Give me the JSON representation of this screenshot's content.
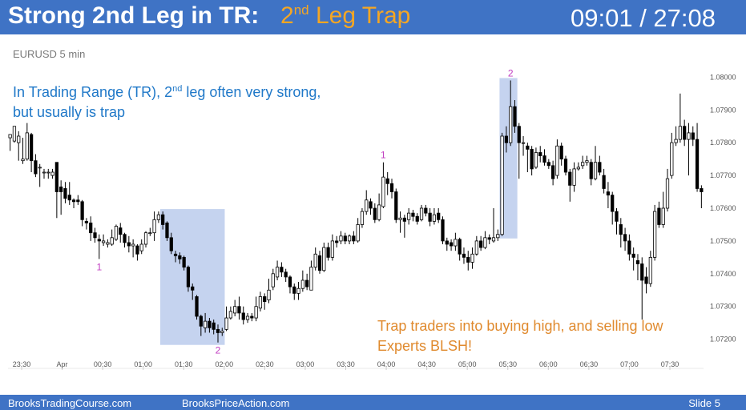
{
  "header": {
    "title": "Strong 2nd Leg in TR:",
    "title_accent_prefix": "2",
    "title_accent_sup": "nd",
    "title_accent_suffix": " Leg Trap",
    "timer": "09:01 / 27:08"
  },
  "symbol_label": "EURUSD 5 min",
  "annotation_left": {
    "line1_prefix": "In Trading Range (TR), 2",
    "line1_sup": "nd",
    "line1_suffix": " leg often very strong,",
    "line2": "but usually is trap"
  },
  "annotation_right": {
    "line1": "Trap traders into buying high, and selling low",
    "line2": "Experts BLSH!"
  },
  "footer": {
    "left": "BrooksTradingCourse.com",
    "center": "BrooksPriceAction.com",
    "right": "Slide  5"
  },
  "colors": {
    "header_bg": "#3f73c5",
    "accent": "#f5a623",
    "annotation_left": "#1f78c8",
    "annotation_right": "#e08a2e",
    "leg_labels": "#c13fc1",
    "highlight": "#c5d3ef",
    "bull_body": "#ffffff",
    "bear_body": "#000000"
  },
  "chart_data": {
    "type": "candlestick",
    "ylim": [
      1.0716,
      1.0804
    ],
    "y_ticks": [
      "1.08000",
      "1.07900",
      "1.07800",
      "1.07700",
      "1.07600",
      "1.07500",
      "1.07400",
      "1.07300",
      "1.07200"
    ],
    "x_ticks": [
      "23:30",
      "Apr",
      "00:30",
      "01:00",
      "01:30",
      "02:00",
      "02:30",
      "03:00",
      "03:30",
      "04:00",
      "04:30",
      "05:00",
      "05:30",
      "06:00",
      "06:30",
      "07:00",
      "07:30"
    ],
    "leg_labels": [
      {
        "text": "1",
        "bar": 21,
        "position": "below"
      },
      {
        "text": "2",
        "bar": 49,
        "position": "below"
      },
      {
        "text": "1",
        "bar": 88,
        "position": "above"
      },
      {
        "text": "2",
        "bar": 118,
        "position": "above"
      }
    ],
    "highlight_ranges": [
      [
        36,
        50
      ],
      [
        116,
        119
      ]
    ],
    "bars": [
      [
        1.07815,
        1.07825,
        1.07825,
        1.07775
      ],
      [
        1.07805,
        1.0785,
        1.0785,
        1.078
      ],
      [
        1.078,
        1.0782,
        1.07835,
        1.07745
      ],
      [
        1.07745,
        1.0775,
        1.07815,
        1.07735
      ],
      [
        1.0775,
        1.0783,
        1.0786,
        1.07745
      ],
      [
        1.07825,
        1.07745,
        1.0783,
        1.0771
      ],
      [
        1.07745,
        1.07705,
        1.07765,
        1.07695
      ],
      [
        1.07725,
        1.07725,
        1.07735,
        1.07665
      ],
      [
        1.0771,
        1.0771,
        1.0772,
        1.0769
      ],
      [
        1.0771,
        1.0771,
        1.0772,
        1.0769
      ],
      [
        1.077,
        1.0771,
        1.0772,
        1.0769
      ],
      [
        1.0774,
        1.0765,
        1.0774,
        1.0757
      ],
      [
        1.07665,
        1.0765,
        1.07685,
        1.0758
      ],
      [
        1.0766,
        1.0763,
        1.0768,
        1.07615
      ],
      [
        1.0764,
        1.07625,
        1.0768,
        1.0761
      ],
      [
        1.07625,
        1.0762,
        1.0763,
        1.076
      ],
      [
        1.07625,
        1.0762,
        1.0764,
        1.0761
      ],
      [
        1.0762,
        1.07565,
        1.07625,
        1.07545
      ],
      [
        1.0756,
        1.07555,
        1.0757,
        1.07535
      ],
      [
        1.07555,
        1.07525,
        1.07575,
        1.075
      ],
      [
        1.07525,
        1.0751,
        1.0754,
        1.07495
      ],
      [
        1.07505,
        1.075,
        1.0752,
        1.07445
      ],
      [
        1.07495,
        1.075,
        1.0752,
        1.07485
      ],
      [
        1.0749,
        1.07495,
        1.07505,
        1.0748
      ],
      [
        1.0749,
        1.0751,
        1.07535,
        1.07485
      ],
      [
        1.07505,
        1.07545,
        1.0755,
        1.075
      ],
      [
        1.0754,
        1.0752,
        1.07555,
        1.07495
      ],
      [
        1.0752,
        1.07495,
        1.07525,
        1.0748
      ],
      [
        1.07495,
        1.07485,
        1.07515,
        1.07465
      ],
      [
        1.07485,
        1.0749,
        1.07505,
        1.0745
      ],
      [
        1.07485,
        1.0746,
        1.0749,
        1.0744
      ],
      [
        1.0747,
        1.0749,
        1.07505,
        1.0746
      ],
      [
        1.0749,
        1.07525,
        1.0753,
        1.0748
      ],
      [
        1.07525,
        1.07525,
        1.0754,
        1.07515
      ],
      [
        1.07525,
        1.07565,
        1.0759,
        1.075
      ],
      [
        1.07565,
        1.0758,
        1.0759,
        1.07555
      ],
      [
        1.0758,
        1.0755,
        1.0759,
        1.07535
      ],
      [
        1.07555,
        1.0751,
        1.0756,
        1.075
      ],
      [
        1.0751,
        1.0747,
        1.07525,
        1.0746
      ],
      [
        1.0746,
        1.07455,
        1.0747,
        1.07435
      ],
      [
        1.07455,
        1.07445,
        1.07465,
        1.0743
      ],
      [
        1.0745,
        1.0742,
        1.07455,
        1.0741
      ],
      [
        1.0742,
        1.0736,
        1.07425,
        1.07345
      ],
      [
        1.0736,
        1.0735,
        1.0737,
        1.0732
      ],
      [
        1.0733,
        1.0727,
        1.07335,
        1.0726
      ],
      [
        1.0727,
        1.0724,
        1.07275,
        1.0721
      ],
      [
        1.07235,
        1.07255,
        1.0728,
        1.0722
      ],
      [
        1.07255,
        1.07235,
        1.07265,
        1.0722
      ],
      [
        1.0725,
        1.0723,
        1.0726,
        1.07215
      ],
      [
        1.0723,
        1.0722,
        1.07245,
        1.0719
      ],
      [
        1.0722,
        1.07225,
        1.07235,
        1.0721
      ],
      [
        1.0723,
        1.07265,
        1.073,
        1.07225
      ],
      [
        1.07265,
        1.07285,
        1.073,
        1.0726
      ],
      [
        1.0728,
        1.073,
        1.0732,
        1.0727
      ],
      [
        1.073,
        1.0728,
        1.0733,
        1.0726
      ],
      [
        1.0728,
        1.0726,
        1.073,
        1.07245
      ],
      [
        1.0726,
        1.0727,
        1.0728,
        1.0725
      ],
      [
        1.0727,
        1.07265,
        1.0728,
        1.07255
      ],
      [
        1.07265,
        1.073,
        1.0733,
        1.07255
      ],
      [
        1.07295,
        1.0733,
        1.07345,
        1.07285
      ],
      [
        1.0733,
        1.07315,
        1.0734,
        1.0729
      ],
      [
        1.0732,
        1.0735,
        1.07385,
        1.0731
      ],
      [
        1.0736,
        1.074,
        1.07415,
        1.0735
      ],
      [
        1.0739,
        1.0742,
        1.0744,
        1.0738
      ],
      [
        1.0742,
        1.07405,
        1.07435,
        1.0739
      ],
      [
        1.07405,
        1.0739,
        1.07415,
        1.07375
      ],
      [
        1.0739,
        1.0736,
        1.07395,
        1.0734
      ],
      [
        1.0736,
        1.0734,
        1.0737,
        1.0732
      ],
      [
        1.0734,
        1.07355,
        1.07375,
        1.0732
      ],
      [
        1.07355,
        1.0738,
        1.0741,
        1.07345
      ],
      [
        1.0738,
        1.0736,
        1.074,
        1.0735
      ],
      [
        1.0735,
        1.0742,
        1.0744,
        1.0735
      ],
      [
        1.0742,
        1.0746,
        1.0748,
        1.0741
      ],
      [
        1.07455,
        1.0741,
        1.0747,
        1.074
      ],
      [
        1.0741,
        1.0748,
        1.07495,
        1.07405
      ],
      [
        1.0748,
        1.0745,
        1.07495,
        1.0744
      ],
      [
        1.0745,
        1.075,
        1.0752,
        1.0744
      ],
      [
        1.075,
        1.07495,
        1.07515,
        1.0748
      ],
      [
        1.075,
        1.07515,
        1.0753,
        1.0749
      ],
      [
        1.07515,
        1.075,
        1.07525,
        1.0749
      ],
      [
        1.075,
        1.07515,
        1.0752,
        1.0749
      ],
      [
        1.07515,
        1.075,
        1.0753,
        1.0749
      ],
      [
        1.075,
        1.0755,
        1.0757,
        1.07495
      ],
      [
        1.0755,
        1.0759,
        1.076,
        1.0754
      ],
      [
        1.0759,
        1.07625,
        1.07655,
        1.0758
      ],
      [
        1.0762,
        1.076,
        1.0763,
        1.0758
      ],
      [
        1.076,
        1.07565,
        1.07615,
        1.07555
      ],
      [
        1.07565,
        1.0761,
        1.07645,
        1.0756
      ],
      [
        1.07605,
        1.07695,
        1.0774,
        1.076
      ],
      [
        1.0769,
        1.07675,
        1.0771,
        1.0764
      ],
      [
        1.07675,
        1.0765,
        1.0769,
        1.0763
      ],
      [
        1.0765,
        1.07565,
        1.0766,
        1.07555
      ],
      [
        1.07565,
        1.0757,
        1.0759,
        1.07525
      ],
      [
        1.0757,
        1.0756,
        1.0758,
        1.0751
      ],
      [
        1.07565,
        1.07585,
        1.076,
        1.0755
      ],
      [
        1.07585,
        1.07575,
        1.07595,
        1.0756
      ],
      [
        1.07575,
        1.0756,
        1.07585,
        1.0755
      ],
      [
        1.07565,
        1.076,
        1.0761,
        1.0756
      ],
      [
        1.076,
        1.07585,
        1.0761,
        1.07575
      ],
      [
        1.07585,
        1.0756,
        1.076,
        1.07545
      ],
      [
        1.0756,
        1.0758,
        1.076,
        1.0755
      ],
      [
        1.07585,
        1.07565,
        1.076,
        1.07555
      ],
      [
        1.07565,
        1.075,
        1.07575,
        1.0749
      ],
      [
        1.075,
        1.0749,
        1.0751,
        1.0747
      ],
      [
        1.07495,
        1.07485,
        1.07505,
        1.0747
      ],
      [
        1.07485,
        1.07505,
        1.07525,
        1.0747
      ],
      [
        1.07505,
        1.0746,
        1.0751,
        1.0744
      ],
      [
        1.0746,
        1.0745,
        1.0748,
        1.0743
      ],
      [
        1.0745,
        1.07435,
        1.0747,
        1.0741
      ],
      [
        1.07435,
        1.0746,
        1.0748,
        1.07415
      ],
      [
        1.0746,
        1.075,
        1.07515,
        1.07455
      ],
      [
        1.075,
        1.0748,
        1.07515,
        1.0747
      ],
      [
        1.0748,
        1.0751,
        1.0753,
        1.07475
      ],
      [
        1.0751,
        1.07505,
        1.0752,
        1.0749
      ],
      [
        1.075,
        1.0751,
        1.076,
        1.07495
      ],
      [
        1.0751,
        1.0752,
        1.07535,
        1.075
      ],
      [
        1.0752,
        1.0782,
        1.0783,
        1.07515
      ],
      [
        1.0782,
        1.078,
        1.0785,
        1.0777
      ],
      [
        1.078,
        1.0791,
        1.0799,
        1.0779
      ],
      [
        1.0791,
        1.0785,
        1.0793,
        1.0783
      ],
      [
        1.0785,
        1.078,
        1.0786,
        1.0769
      ],
      [
        1.078,
        1.078,
        1.0782,
        1.0776
      ],
      [
        1.0779,
        1.0778,
        1.078,
        1.0771
      ],
      [
        1.0778,
        1.0772,
        1.0779,
        1.077
      ],
      [
        1.07725,
        1.0777,
        1.07785,
        1.0772
      ],
      [
        1.0777,
        1.0776,
        1.0779,
        1.0774
      ],
      [
        1.0776,
        1.0774,
        1.0778,
        1.0773
      ],
      [
        1.0774,
        1.0773,
        1.0775,
        1.0772
      ],
      [
        1.0773,
        1.0769,
        1.07745,
        1.0767
      ],
      [
        1.077,
        1.0779,
        1.0781,
        1.0769
      ],
      [
        1.0779,
        1.0775,
        1.078,
        1.0773
      ],
      [
        1.0775,
        1.0771,
        1.0776,
        1.077
      ],
      [
        1.0771,
        1.0767,
        1.0772,
        1.0762
      ],
      [
        1.0767,
        1.0772,
        1.0774,
        1.0765
      ],
      [
        1.0772,
        1.07725,
        1.0774,
        1.07715
      ],
      [
        1.0773,
        1.0774,
        1.0776,
        1.0772
      ],
      [
        1.0774,
        1.07745,
        1.0776,
        1.0773
      ],
      [
        1.0774,
        1.0769,
        1.0775,
        1.0767
      ],
      [
        1.0769,
        1.0774,
        1.0779,
        1.07685
      ],
      [
        1.0774,
        1.0771,
        1.0776,
        1.077
      ],
      [
        1.077,
        1.0766,
        1.0772,
        1.07645
      ],
      [
        1.0765,
        1.0764,
        1.0768,
        1.076
      ],
      [
        1.0764,
        1.0759,
        1.0765,
        1.0755
      ],
      [
        1.0759,
        1.0756,
        1.076,
        1.0752
      ],
      [
        1.0755,
        1.0752,
        1.0757,
        1.0748
      ],
      [
        1.0752,
        1.075,
        1.0754,
        1.0747
      ],
      [
        1.075,
        1.0746,
        1.0752,
        1.0744
      ],
      [
        1.0746,
        1.0745,
        1.0748,
        1.0741
      ],
      [
        1.0744,
        1.0743,
        1.0746,
        1.0738
      ],
      [
        1.0743,
        1.0738,
        1.0745,
        1.0726
      ],
      [
        1.0739,
        1.0737,
        1.0742,
        1.0734
      ],
      [
        1.0737,
        1.0745,
        1.0747,
        1.0736
      ],
      [
        1.0745,
        1.0759,
        1.0761,
        1.0744
      ],
      [
        1.076,
        1.0755,
        1.0762,
        1.0754
      ],
      [
        1.0755,
        1.076,
        1.0765,
        1.0754
      ],
      [
        1.076,
        1.0769,
        1.0772,
        1.0759
      ],
      [
        1.077,
        1.078,
        1.0783,
        1.0769
      ],
      [
        1.078,
        1.0781,
        1.0785,
        1.0779
      ],
      [
        1.0781,
        1.0785,
        1.0795,
        1.078
      ],
      [
        1.0785,
        1.0781,
        1.0787,
        1.0779
      ],
      [
        1.0781,
        1.0783,
        1.0786,
        1.077
      ],
      [
        1.0783,
        1.0781,
        1.0785,
        1.0779
      ],
      [
        1.0781,
        1.0766,
        1.0786,
        1.0765
      ],
      [
        1.0766,
        1.0765,
        1.0767,
        1.076
      ]
    ]
  }
}
